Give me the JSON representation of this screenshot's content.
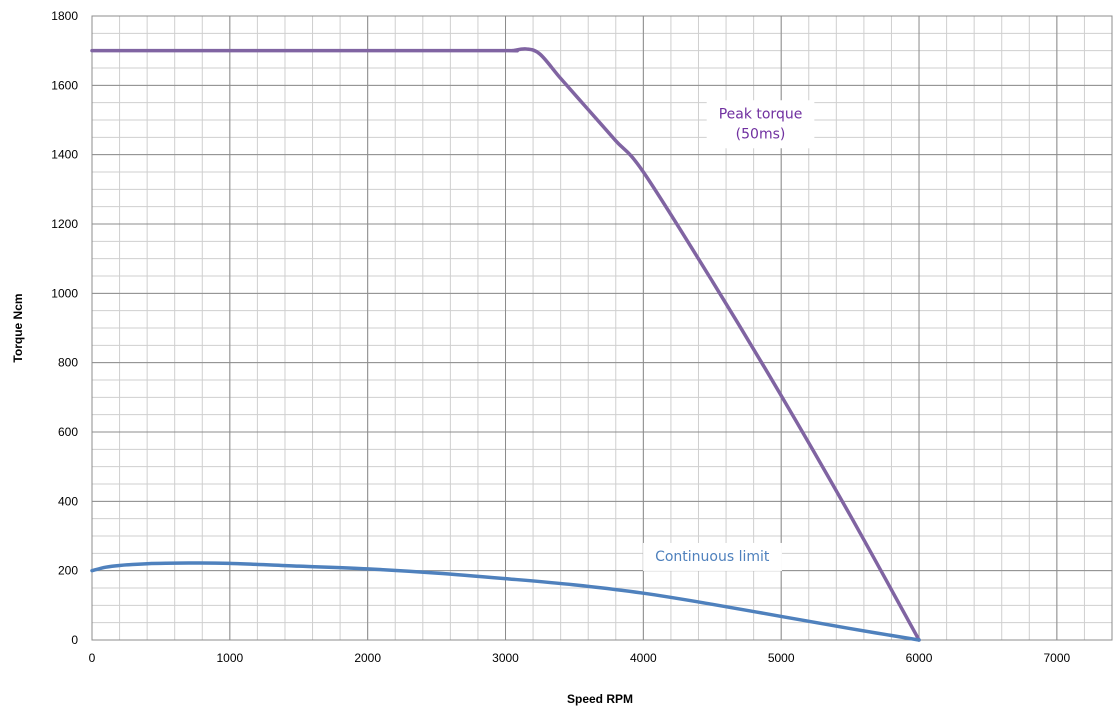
{
  "chart_data": {
    "type": "line",
    "title": "",
    "xlabel": "Speed RPM",
    "ylabel": "Torque Ncm",
    "xlim": [
      0,
      7400
    ],
    "ylim": [
      0,
      1800
    ],
    "x_ticks": [
      "0",
      "1000",
      "2000",
      "3000",
      "4000",
      "5000",
      "6000",
      "7000"
    ],
    "y_ticks": [
      "0",
      "200",
      "400",
      "600",
      "800",
      "1000",
      "1200",
      "1400",
      "1600",
      "1800"
    ],
    "grid": true,
    "legend": "none",
    "series": [
      {
        "name": "Peak torque (50ms)",
        "color": "#8064a2",
        "x": [
          0,
          1000,
          2000,
          3000,
          3050,
          3150,
          3250,
          3400,
          3600,
          3800,
          4000,
          4500,
          5000,
          5500,
          6000
        ],
        "y": [
          1700,
          1700,
          1700,
          1700,
          1700,
          1705,
          1690,
          1620,
          1530,
          1440,
          1350,
          1035,
          705,
          360,
          0
        ]
      },
      {
        "name": "Continuous  limit",
        "color": "#4f81bd",
        "x": [
          0,
          100,
          200,
          400,
          700,
          1000,
          1500,
          2000,
          2500,
          3000,
          3500,
          4000,
          4500,
          5000,
          5500,
          6000
        ],
        "y": [
          200,
          210,
          215,
          220,
          222,
          221,
          213,
          205,
          193,
          177,
          159,
          135,
          103,
          68,
          33,
          0
        ]
      }
    ],
    "annotations": [
      {
        "lines": [
          "Peak torque",
          "(50ms)"
        ],
        "color": "#7030a0",
        "x": 4850,
        "y": 1505
      },
      {
        "lines": [
          "Continuous  limit"
        ],
        "color": "#4f81bd",
        "x": 4500,
        "y": 228
      }
    ]
  }
}
